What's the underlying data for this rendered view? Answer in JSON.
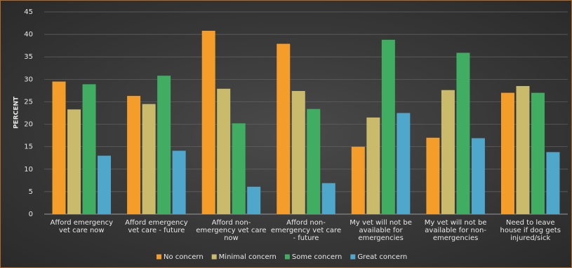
{
  "chart_data": {
    "type": "bar",
    "y_label": "PERCENT",
    "categories": [
      "Afford emergency vet care now",
      "Afford emergency vet care - future",
      "Afford non-emergency vet care now",
      "Afford non-emergency vet care - future",
      "My vet will not be available for emergencies",
      "My vet will not be available for non-emergencies",
      "Need to leave house if dog gets injured/sick"
    ],
    "series": [
      {
        "name": "No concern",
        "color": "#f59d2a",
        "values": [
          29.5,
          26.3,
          40.8,
          37.9,
          15,
          17,
          27
        ]
      },
      {
        "name": "Minimal concern",
        "color": "#c9ba6c",
        "values": [
          23.3,
          24.5,
          27.9,
          27.4,
          21.5,
          27.6,
          28.5
        ]
      },
      {
        "name": "Some concern",
        "color": "#40ad62",
        "values": [
          28.9,
          30.8,
          20.2,
          23.4,
          38.8,
          35.9,
          27
        ]
      },
      {
        "name": "Great concern",
        "color": "#4fa7cb",
        "values": [
          13,
          14.1,
          6.1,
          6.9,
          22.5,
          16.9,
          13.8
        ]
      }
    ],
    "ylim": [
      0,
      45
    ],
    "yticks": [
      0,
      5,
      10,
      15,
      20,
      25,
      30,
      35,
      40,
      45
    ],
    "grid": true
  }
}
